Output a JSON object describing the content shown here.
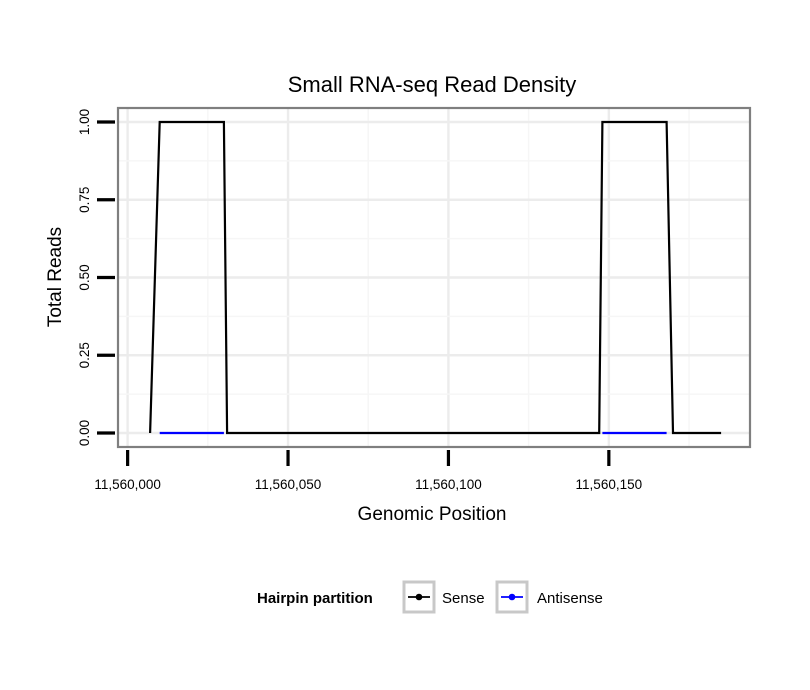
{
  "chart_data": {
    "type": "line",
    "title": "Small RNA-seq Read Density",
    "xlabel": "Genomic Position",
    "ylabel": "Total Reads",
    "xlim": [
      11559997,
      11560194
    ],
    "ylim": [
      -0.045,
      1.045
    ],
    "x_ticks": [
      11560000,
      11560050,
      11560100,
      11560150
    ],
    "x_tick_labels": [
      "11,560,000",
      "11,560,050",
      "11,560,100",
      "11,560,150"
    ],
    "y_ticks": [
      0,
      0.25,
      0.5,
      0.75,
      1.0
    ],
    "y_tick_labels": [
      "0.00",
      "0.25",
      "0.50",
      "0.75",
      "1.00"
    ],
    "grid": true,
    "legend": {
      "title": "Hairpin partition",
      "position": "bottom",
      "entries": [
        "Sense",
        "Antisense"
      ]
    },
    "series": [
      {
        "name": "Sense",
        "color": "#000000",
        "x": [
          11560007,
          11560010,
          11560030,
          11560031,
          11560147,
          11560148,
          11560168,
          11560170,
          11560185
        ],
        "y": [
          0,
          1,
          1,
          0,
          0,
          1,
          1,
          0,
          0
        ]
      },
      {
        "name": "Antisense",
        "color": "#0000ff",
        "segments": [
          {
            "x": [
              11560010,
              11560030
            ],
            "y": [
              0,
              0
            ]
          },
          {
            "x": [
              11560148,
              11560168
            ],
            "y": [
              0,
              0
            ]
          }
        ]
      }
    ]
  }
}
